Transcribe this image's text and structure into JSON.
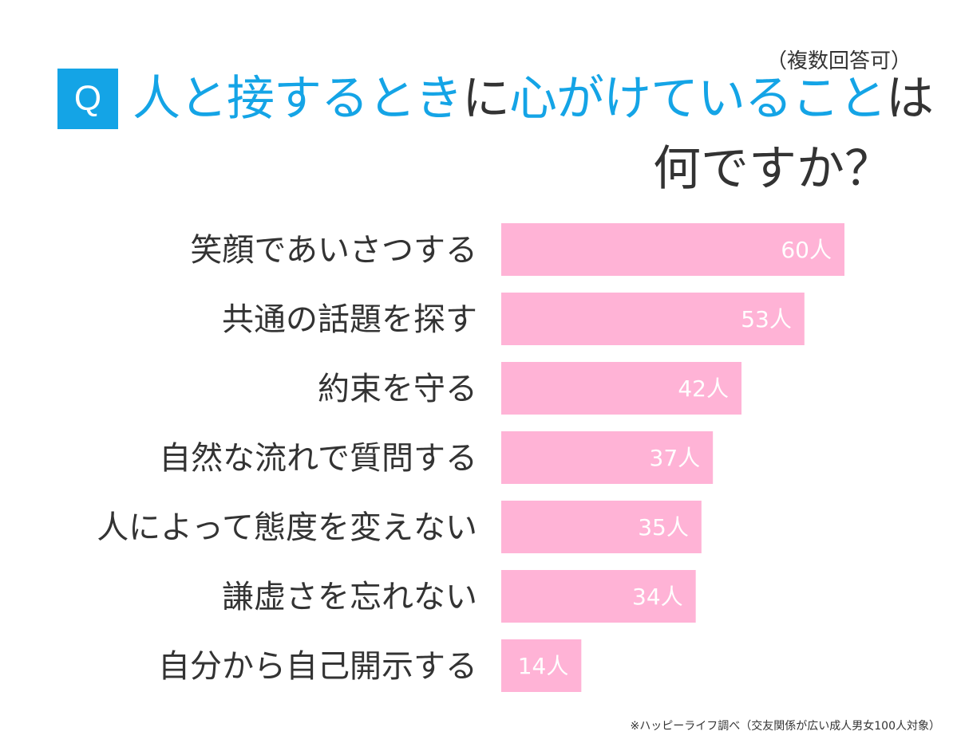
{
  "note": "（複数回答可）",
  "q_label": "Q",
  "title": {
    "line1": [
      {
        "text": "人と接するとき",
        "style": "highlight"
      },
      {
        "text": "に",
        "style": "dark"
      },
      {
        "text": "心がけていること",
        "style": "highlight"
      },
      {
        "text": "は",
        "style": "dark"
      }
    ],
    "line2": "何ですか？"
  },
  "colors": {
    "accent": "#14a4e6",
    "bar": "#ffb3d6",
    "text": "#333333",
    "bar_label": "#ffffff"
  },
  "chart_data": {
    "type": "bar",
    "orientation": "horizontal",
    "categories": [
      "笑顔であいさつする",
      "共通の話題を探す",
      "約束を守る",
      "自然な流れで質問する",
      "人によって態度を変えない",
      "謙虚さを忘れない",
      "自分から自己開示する"
    ],
    "values": [
      60,
      53,
      42,
      37,
      35,
      34,
      14
    ],
    "value_labels": [
      "60人",
      "53人",
      "42人",
      "37人",
      "35人",
      "34人",
      "14人"
    ],
    "unit": "人",
    "xlim": [
      0,
      60
    ],
    "grid": false,
    "legend": "none"
  },
  "source": "※ハッピーライフ調べ（交友関係が広い成人男女100人対象）"
}
